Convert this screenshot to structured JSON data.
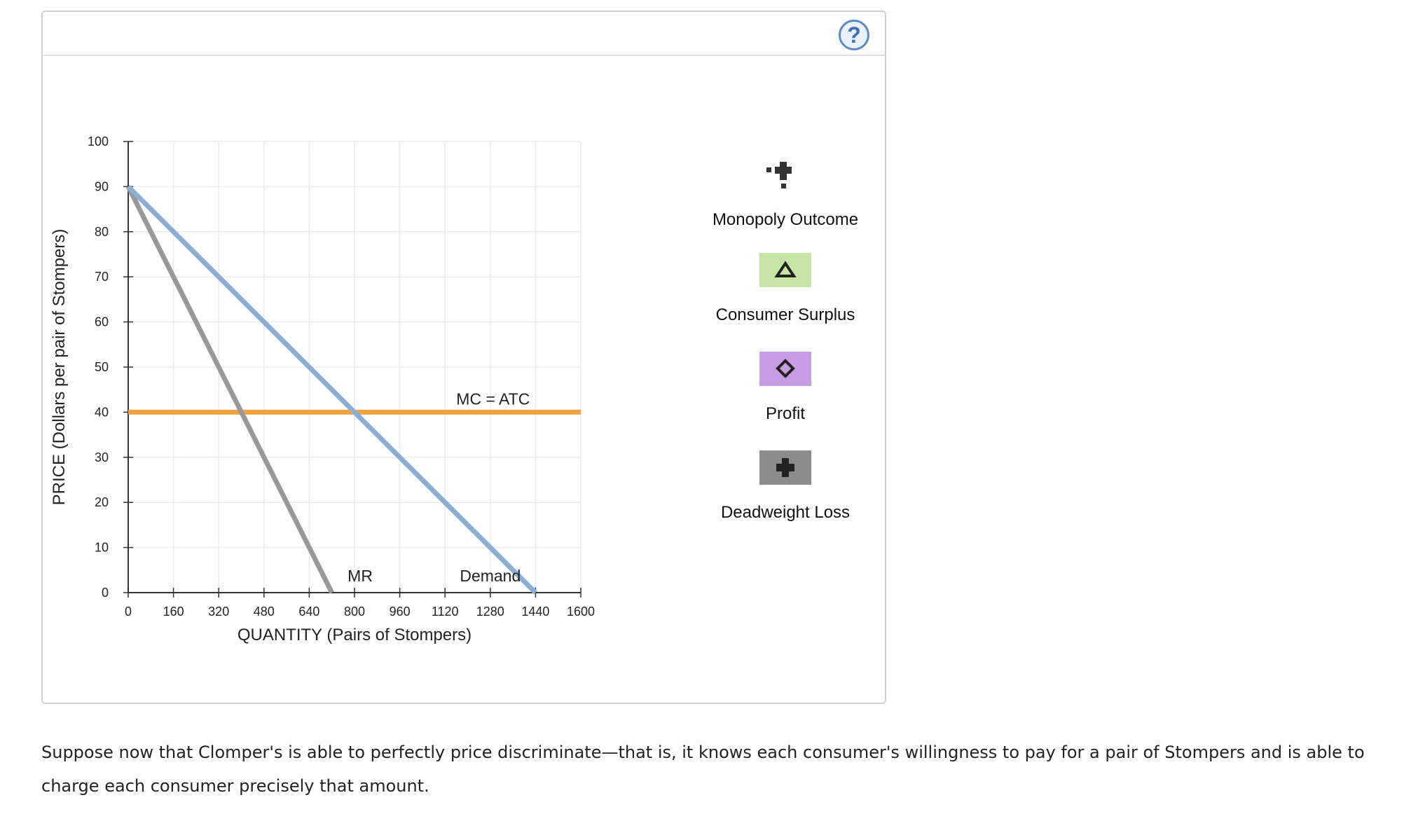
{
  "help_label": "?",
  "legend": {
    "items": [
      {
        "label": "Monopoly Outcome",
        "icon": "plus-icon"
      },
      {
        "label": "Consumer Surplus",
        "icon": "triangle-icon",
        "color": "#c5e5a5"
      },
      {
        "label": "Profit",
        "icon": "diamond-icon",
        "color": "#c69de2"
      },
      {
        "label": "Deadweight Loss",
        "icon": "plus-icon",
        "color": "#8c8c8c"
      }
    ]
  },
  "question_text": "Suppose now that Clomper's is able to perfectly price discriminate—that is, it knows each consumer's willingness to pay for a pair of Stompers and is able to charge each consumer precisely that amount.",
  "chart_data": {
    "type": "line",
    "xlabel": "QUANTITY (Pairs of Stompers)",
    "ylabel": "PRICE (Dollars per pair of Stompers)",
    "xlim": [
      0,
      1600
    ],
    "ylim": [
      0,
      100
    ],
    "x_ticks": [
      0,
      160,
      320,
      480,
      640,
      800,
      960,
      1120,
      1280,
      1440,
      1600
    ],
    "y_ticks": [
      0,
      10,
      20,
      30,
      40,
      50,
      60,
      70,
      80,
      90,
      100
    ],
    "grid": true,
    "series": [
      {
        "name": "Demand",
        "color": "#8aaed6",
        "x": [
          0,
          1440
        ],
        "y": [
          90,
          0
        ]
      },
      {
        "name": "MR",
        "color": "#999999",
        "x": [
          0,
          720
        ],
        "y": [
          90,
          0
        ]
      },
      {
        "name": "MC = ATC",
        "color": "#f0a341",
        "x": [
          0,
          1600
        ],
        "y": [
          40,
          40
        ]
      }
    ]
  }
}
